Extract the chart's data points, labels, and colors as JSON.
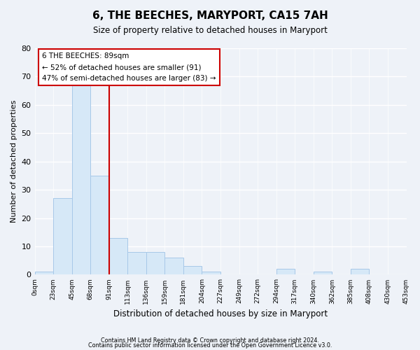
{
  "title": "6, THE BEECHES, MARYPORT, CA15 7AH",
  "subtitle": "Size of property relative to detached houses in Maryport",
  "xlabel": "Distribution of detached houses by size in Maryport",
  "ylabel": "Number of detached properties",
  "bar_color": "#d6e8f7",
  "bar_edge_color": "#a8c8e8",
  "bin_labels": [
    "0sqm",
    "23sqm",
    "45sqm",
    "68sqm",
    "91sqm",
    "113sqm",
    "136sqm",
    "159sqm",
    "181sqm",
    "204sqm",
    "227sqm",
    "249sqm",
    "272sqm",
    "294sqm",
    "317sqm",
    "340sqm",
    "362sqm",
    "385sqm",
    "408sqm",
    "430sqm",
    "453sqm"
  ],
  "bar_heights": [
    1,
    27,
    67,
    35,
    13,
    8,
    8,
    6,
    3,
    1,
    0,
    0,
    0,
    2,
    0,
    1,
    0,
    2,
    0,
    0
  ],
  "vline_x": 3,
  "vline_color": "#cc0000",
  "annotation_text": "6 THE BEECHES: 89sqm\n← 52% of detached houses are smaller (91)\n47% of semi-detached houses are larger (83) →",
  "annotation_box_color": "white",
  "annotation_box_edge": "#cc0000",
  "ylim": [
    0,
    80
  ],
  "yticks": [
    0,
    10,
    20,
    30,
    40,
    50,
    60,
    70,
    80
  ],
  "footer1": "Contains HM Land Registry data © Crown copyright and database right 2024.",
  "footer2": "Contains public sector information licensed under the Open Government Licence v3.0.",
  "background_color": "#eef2f8"
}
